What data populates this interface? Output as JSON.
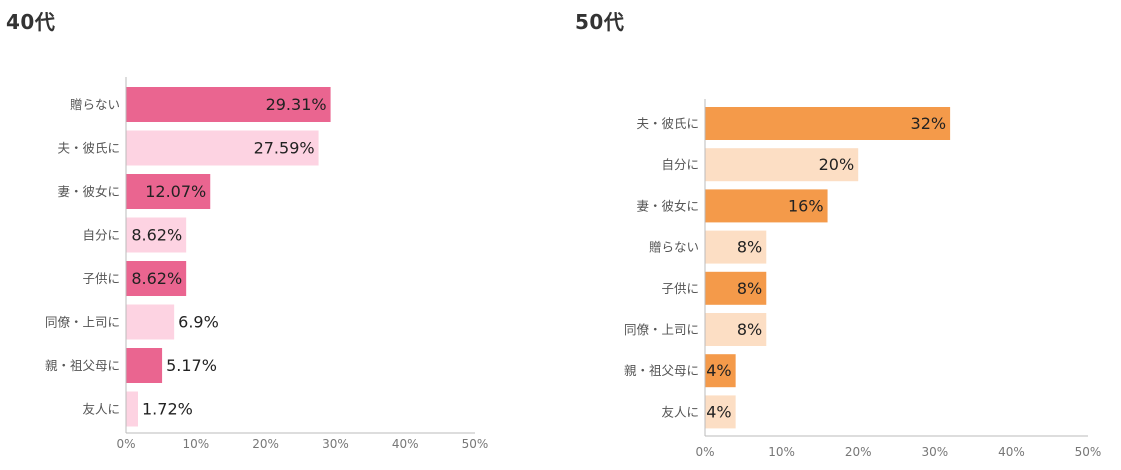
{
  "chart_data": [
    {
      "type": "bar",
      "orientation": "horizontal",
      "title": "40代",
      "categories": [
        "贈らない",
        "夫・彼氏に",
        "妻・彼女に",
        "自分に",
        "子供に",
        "同僚・上司に",
        "親・祖父母に",
        "友人に"
      ],
      "values": [
        29.31,
        27.59,
        12.07,
        8.62,
        8.62,
        6.9,
        5.17,
        1.72
      ],
      "data_labels": [
        "29.31%",
        "27.59%",
        "12.07%",
        "8.62%",
        "8.62%",
        "6.9%",
        "5.17%",
        "1.72%"
      ],
      "xlim": [
        0,
        50
      ],
      "xticks": [
        0,
        10,
        20,
        30,
        40,
        50
      ],
      "xtick_labels": [
        "0%",
        "10%",
        "20%",
        "30%",
        "40%",
        "50%"
      ],
      "grid": false,
      "colors": {
        "primary": "#ea6590",
        "alternate": "#fdd3e2"
      }
    },
    {
      "type": "bar",
      "orientation": "horizontal",
      "title": "50代",
      "categories": [
        "夫・彼氏に",
        "自分に",
        "妻・彼女に",
        "贈らない",
        "子供に",
        "同僚・上司に",
        "親・祖父母に",
        "友人に"
      ],
      "values": [
        32,
        20,
        16,
        8,
        8,
        8,
        4,
        4
      ],
      "data_labels": [
        "32%",
        "20%",
        "16%",
        "8%",
        "8%",
        "8%",
        "4%",
        "4%"
      ],
      "xlim": [
        0,
        50
      ],
      "xticks": [
        0,
        10,
        20,
        30,
        40,
        50
      ],
      "xtick_labels": [
        "0%",
        "10%",
        "20%",
        "30%",
        "40%",
        "50%"
      ],
      "grid": false,
      "colors": {
        "primary": "#f49a4a",
        "alternate": "#fcdec4"
      }
    }
  ]
}
